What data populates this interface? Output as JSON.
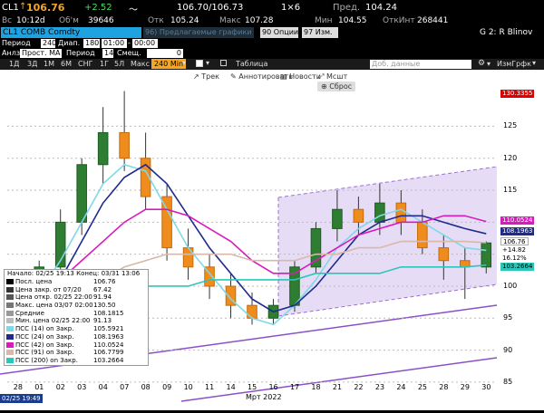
{
  "header": {
    "ticker": "CL1",
    "price": "106.76",
    "change": "+2.52",
    "bid_ask": "106.70/106.73",
    "size": "1×6",
    "prev_label": "Пред.",
    "prev_value": "104.24"
  },
  "quote": {
    "high_label": "Вс",
    "time": "10:12d",
    "volume_label": "Об'м",
    "volume": "39646",
    "open_label": "Отк",
    "open": "105.24",
    "max_label": "Макс",
    "max": "107.28",
    "min_label": "Мин",
    "min": "104.55",
    "oi_label": "ОткИнт",
    "oi": "268441"
  },
  "security_bar": {
    "security": "CL1 COMB Comdty",
    "hint": "96) Предлагаемые графики",
    "options_label": "90 Опции",
    "edit_label": "97 Изм.",
    "group": "G 2: R Blinov"
  },
  "params1": {
    "period_label": "Период",
    "period_value": "240",
    "range_label": "Диап.",
    "range_value": "180",
    "time_from": "01:00",
    "time_to": "00:00"
  },
  "params2": {
    "analysis_label": "Анлз",
    "analysis_value": "Прост. MA",
    "period_label": "Период",
    "period_value": "14",
    "shift_label": "Смещ.",
    "shift_value": "0"
  },
  "timeframes": [
    "1Д",
    "3Д",
    "1М",
    "6М",
    "СНГ",
    "1Г",
    "5Л",
    "Макс"
  ],
  "interval": "240 Min",
  "table_label": "Таблица",
  "add_data_placeholder": "Доб. данные",
  "right_tools": "ИзмГрфк",
  "toolbar": {
    "trend": "Трек",
    "annotate": "Аннотировать",
    "news": "Новости",
    "scale": "Мсшт",
    "reset": "Сброс"
  },
  "y_ticks": [
    "125",
    "120",
    "115",
    "110",
    "105",
    "100",
    "95",
    "90",
    "85"
  ],
  "x_ticks": [
    "28",
    "01",
    "02",
    "03",
    "04",
    "07",
    "08",
    "09",
    "10",
    "11",
    "14",
    "15",
    "16",
    "17",
    "18",
    "21",
    "22",
    "23",
    "24",
    "25",
    "28",
    "29",
    "30"
  ],
  "x_month": "Мрт 2022",
  "x_start": "02/25 19:49",
  "price_tags": {
    "top": "130.3355",
    "ma1": "110.0524",
    "ma2": "108.1963",
    "last": "106.76",
    "chg": "+14.82",
    "pct": "16.12%",
    "ma3": "103.2664"
  },
  "info": {
    "header": "Начало: 02/25 19:13 Конец: 03/31 13:06",
    "rows": [
      {
        "label": "Посл. цена",
        "value": "106.76",
        "color": "#000000"
      },
      {
        "label": "Цена закр. от 07/20",
        "value": "67.42",
        "color": "#333333"
      },
      {
        "label": "Цена откр. 02/25 22:00",
        "value": "91.94",
        "color": "#555555"
      },
      {
        "label": "Макс. цена 03/07 02:00",
        "value": "130.50",
        "color": "#777777"
      },
      {
        "label": "Средние",
        "value": "108.1815",
        "color": "#999999"
      },
      {
        "label": "Мин. цена 02/25 22:00",
        "value": "91.13",
        "color": "#bbbbbb"
      },
      {
        "label": "ПСС (14) on Закр.",
        "value": "105.5921",
        "color": "#7fd8e8"
      },
      {
        "label": "ПСС (24) on Закр.",
        "value": "108.1963",
        "color": "#1f2a8c"
      },
      {
        "label": "ПСС (42) on Закр.",
        "value": "110.0524",
        "color": "#d81bbd"
      },
      {
        "label": "ПСС (91) on Закр.",
        "value": "106.7799",
        "color": "#d8b8a8"
      },
      {
        "label": "ПСС (200) on Закр.",
        "value": "103.2664",
        "color": "#2bc6b8"
      }
    ]
  },
  "chart_data": {
    "type": "line",
    "title": "",
    "ylim": [
      84,
      131
    ],
    "series": [
      {
        "name": "ПСС (14)",
        "color": "#7fd8e8",
        "values": [
          96,
          99,
          104,
          110,
          116,
          119,
          118,
          112,
          106,
          102,
          98,
          95,
          94,
          97,
          101,
          106,
          109,
          111,
          112,
          110,
          108,
          106,
          105.6
        ]
      },
      {
        "name": "ПСС (24)",
        "color": "#1f2a8c",
        "values": [
          95,
          97,
          101,
          107,
          113,
          117,
          119,
          116,
          111,
          106,
          102,
          98,
          96,
          97,
          100,
          104,
          108,
          110,
          111,
          111,
          110,
          109,
          108.2
        ]
      },
      {
        "name": "ПСС (42)",
        "color": "#d81bbd",
        "values": [
          98,
          99,
          101,
          104,
          107,
          110,
          112,
          112,
          111,
          109,
          107,
          104,
          102,
          102,
          104,
          106,
          108,
          109,
          110,
          110,
          111,
          111,
          110.1
        ]
      },
      {
        "name": "ПСС (91)",
        "color": "#d8b8a8",
        "values": [
          96,
          97,
          98,
          99,
          101,
          103,
          104,
          105,
          105,
          105,
          105,
          104,
          104,
          104,
          105,
          105,
          106,
          106,
          107,
          107,
          107,
          107,
          106.8
        ]
      },
      {
        "name": "ПСС (200)",
        "color": "#2bc6b8",
        "values": [
          97,
          97,
          98,
          98,
          99,
          99,
          100,
          100,
          100,
          101,
          101,
          101,
          101,
          101,
          102,
          102,
          102,
          102,
          103,
          103,
          103,
          103,
          103.3
        ]
      }
    ],
    "candles": [
      [
        91.9,
        94.5,
        91.1,
        93.8
      ],
      [
        93.8,
        104,
        93.5,
        103
      ],
      [
        103,
        112,
        102,
        110
      ],
      [
        110,
        120,
        108,
        119
      ],
      [
        119,
        128,
        116,
        124
      ],
      [
        124,
        130.5,
        118,
        120
      ],
      [
        120,
        124,
        112,
        114
      ],
      [
        114,
        116,
        104,
        106
      ],
      [
        106,
        109,
        101,
        103
      ],
      [
        103,
        105,
        98,
        100
      ],
      [
        100,
        102,
        95,
        97
      ],
      [
        97,
        99,
        94,
        95
      ],
      [
        95,
        98,
        94,
        97
      ],
      [
        97,
        104,
        96,
        103
      ],
      [
        103,
        110,
        102,
        109
      ],
      [
        109,
        115,
        107,
        112
      ],
      [
        112,
        114,
        108,
        110
      ],
      [
        110,
        116,
        108,
        113
      ],
      [
        113,
        115,
        108,
        110
      ],
      [
        110,
        112,
        105,
        106
      ],
      [
        106,
        108,
        101,
        104
      ],
      [
        104,
        106,
        98,
        103
      ],
      [
        103,
        107,
        102,
        106.76
      ]
    ]
  }
}
